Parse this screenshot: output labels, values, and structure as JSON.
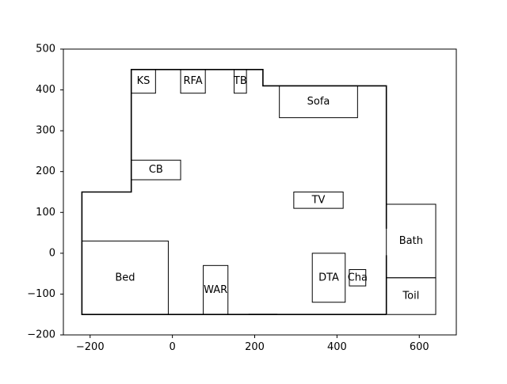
{
  "chart_data": {
    "type": "floor-plan",
    "xlim": [
      -265,
      690
    ],
    "ylim": [
      -200,
      500
    ],
    "x_ticks": [
      {
        "value": -200,
        "label": "−200"
      },
      {
        "value": 0,
        "label": "0"
      },
      {
        "value": 200,
        "label": "200"
      },
      {
        "value": 400,
        "label": "400"
      },
      {
        "value": 600,
        "label": "600"
      }
    ],
    "y_ticks": [
      {
        "value": 500,
        "label": "500"
      },
      {
        "value": 400,
        "label": "400"
      },
      {
        "value": 300,
        "label": "300"
      },
      {
        "value": 200,
        "label": "200"
      },
      {
        "value": 100,
        "label": "100"
      },
      {
        "value": 0,
        "label": "0"
      },
      {
        "value": -100,
        "label": "−100"
      },
      {
        "value": -200,
        "label": "−200"
      }
    ],
    "wall_outline": [
      [
        255,
        -150
      ],
      [
        -220,
        -150
      ],
      [
        -220,
        150
      ],
      [
        -100,
        150
      ],
      [
        -100,
        450
      ],
      [
        220,
        450
      ],
      [
        220,
        410
      ],
      [
        520,
        410
      ],
      [
        520,
        60
      ]
    ],
    "wall_segments": [
      [
        [
          520,
          -5
        ],
        [
          520,
          -150
        ]
      ],
      [
        [
          520,
          -150
        ],
        [
          185,
          -150
        ]
      ]
    ],
    "items": [
      {
        "label": "KS",
        "x0": -100,
        "y0": 392,
        "x1": -41,
        "y1": 450
      },
      {
        "label": "RFA",
        "x0": 20,
        "y0": 392,
        "x1": 80,
        "y1": 450
      },
      {
        "label": "TB",
        "x0": 150,
        "y0": 392,
        "x1": 180,
        "y1": 450
      },
      {
        "label": "Sofa",
        "x0": 260,
        "y0": 332,
        "x1": 450,
        "y1": 410
      },
      {
        "label": "CB",
        "x0": -100,
        "y0": 180,
        "x1": 20,
        "y1": 228
      },
      {
        "label": "TV",
        "x0": 295,
        "y0": 110,
        "x1": 415,
        "y1": 150
      },
      {
        "label": "Bath",
        "x0": 520,
        "y0": -60,
        "x1": 640,
        "y1": 120
      },
      {
        "label": "Toil",
        "x0": 520,
        "y0": -150,
        "x1": 640,
        "y1": -60
      },
      {
        "label": "Bed",
        "x0": -220,
        "y0": -150,
        "x1": -10,
        "y1": 30
      },
      {
        "label": "WAR",
        "x0": 75,
        "y0": -150,
        "x1": 135,
        "y1": -30
      },
      {
        "label": "DTA",
        "x0": 340,
        "y0": -120,
        "x1": 420,
        "y1": 0
      },
      {
        "label": "Cha",
        "x0": 430,
        "y0": -80,
        "x1": 470,
        "y1": -40
      }
    ]
  }
}
